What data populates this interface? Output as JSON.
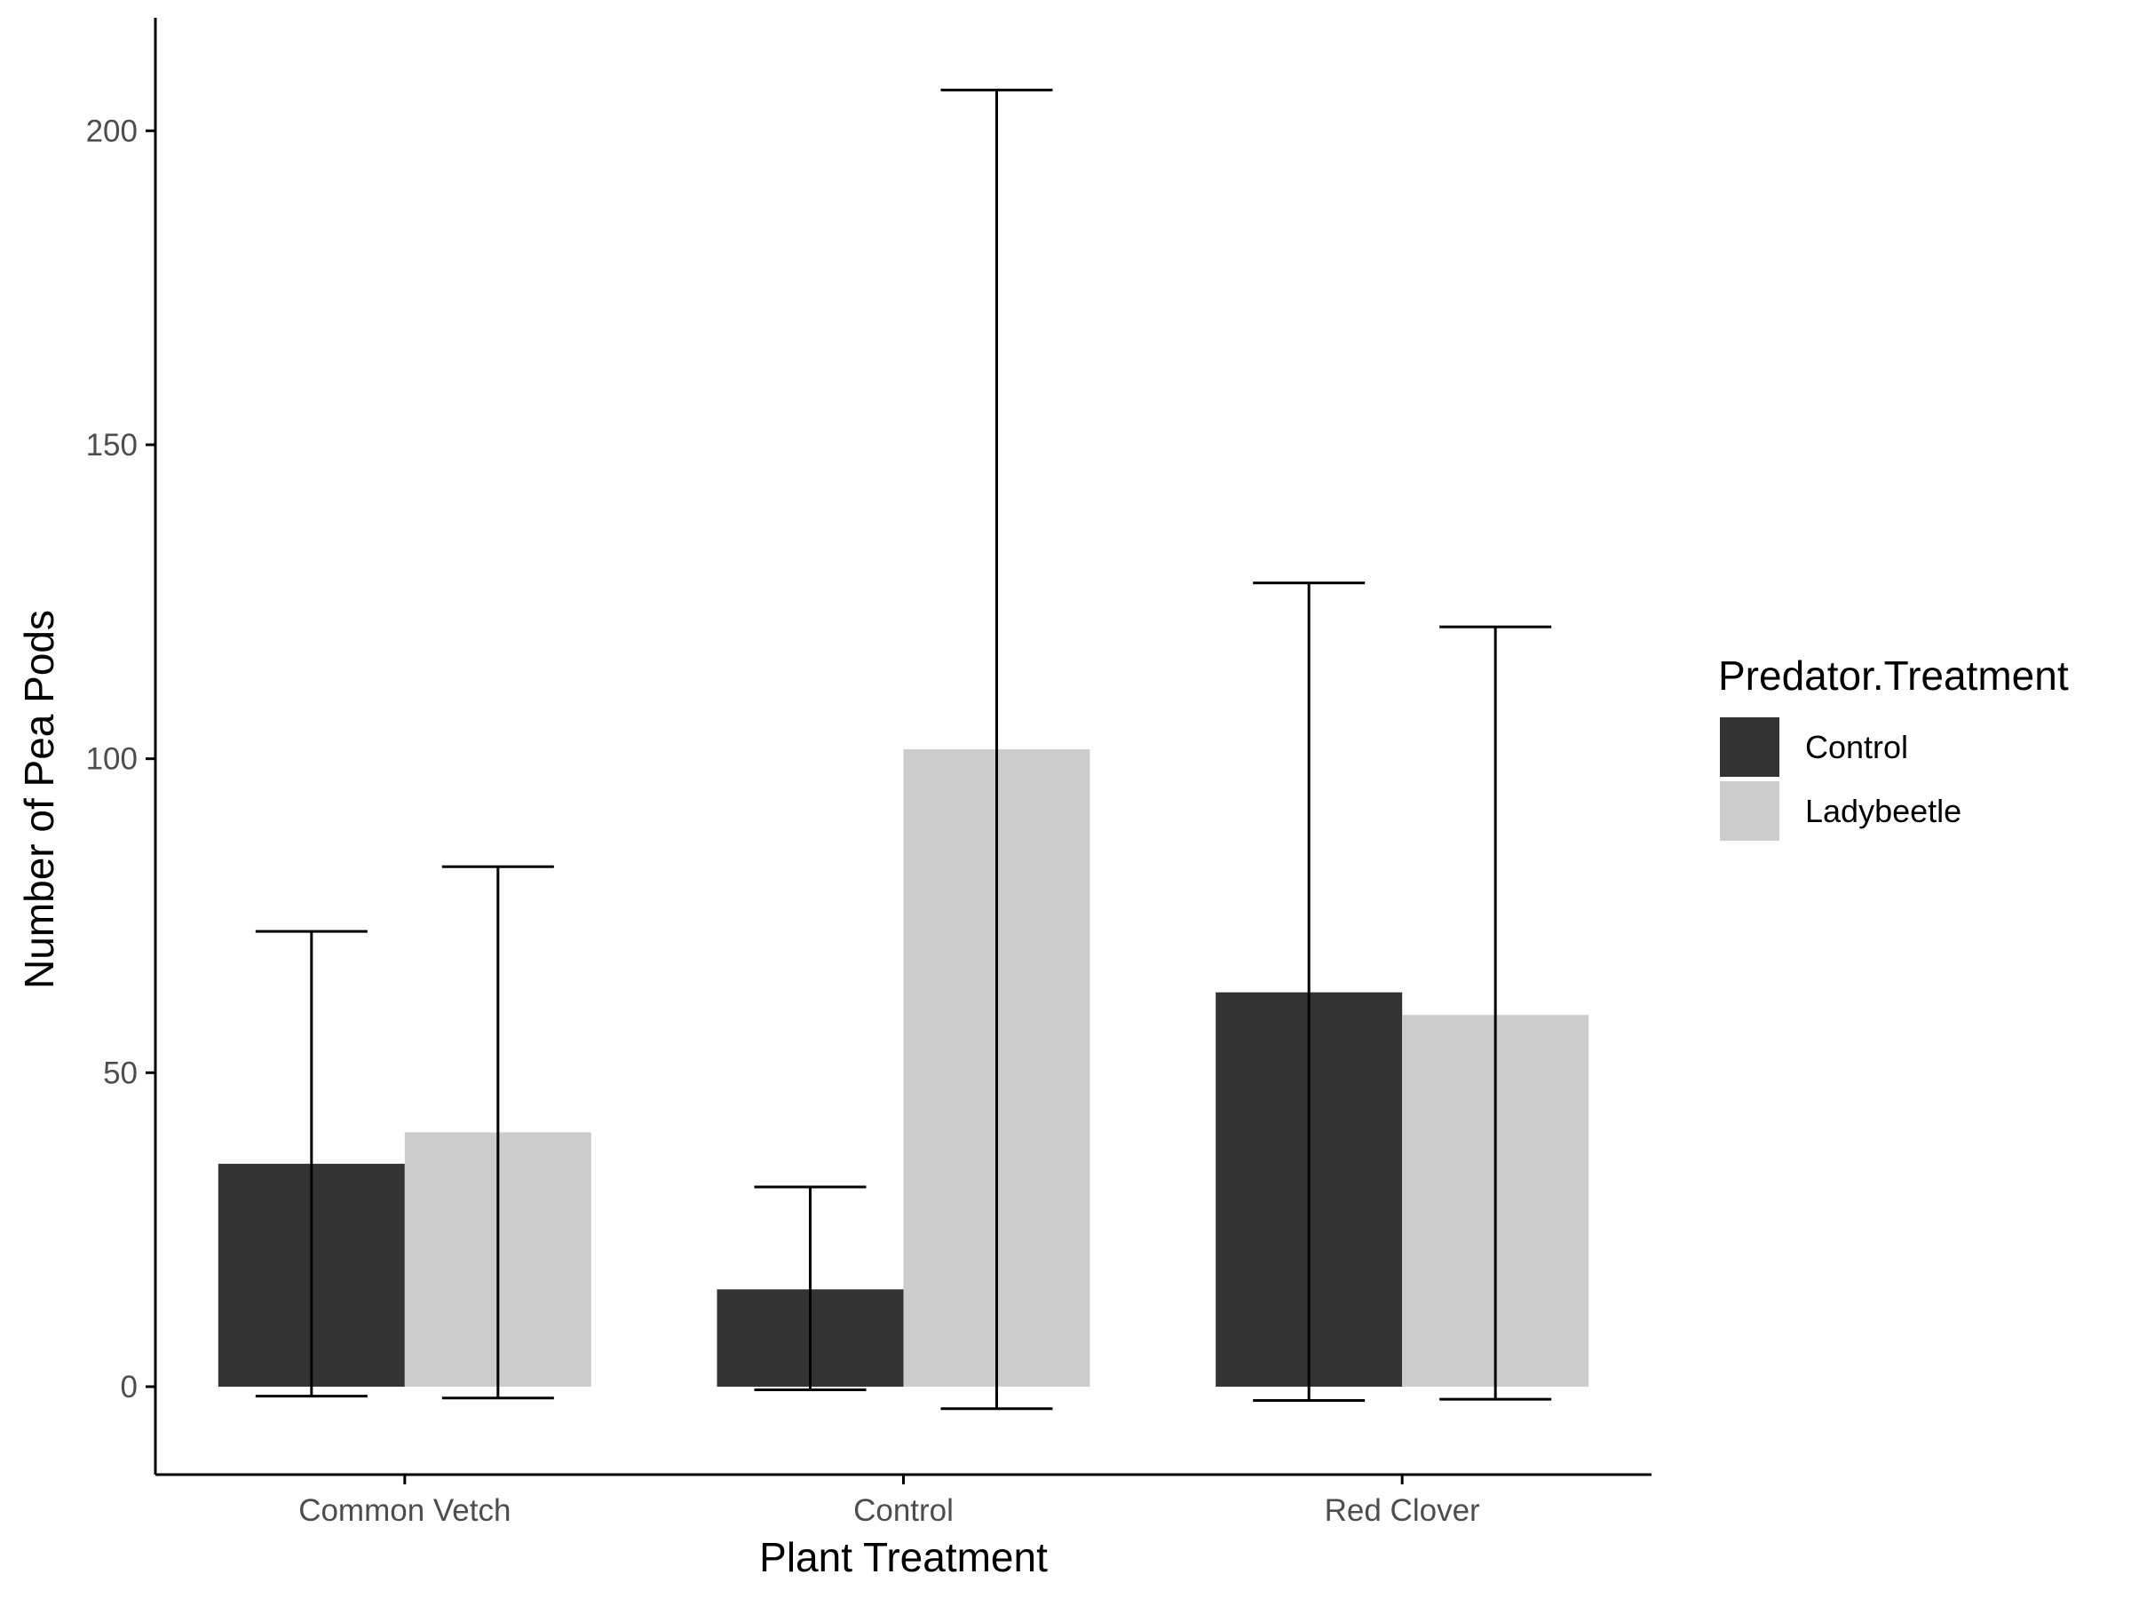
{
  "chart_data": {
    "type": "bar",
    "title": "",
    "xlabel": "Plant Treatment",
    "ylabel": "Number of Pea Pods",
    "categories": [
      "Common Vetch",
      "Control",
      "Red Clover"
    ],
    "ylim": [
      -14,
      218
    ],
    "yticks": [
      0,
      50,
      100,
      150,
      200
    ],
    "grid": false,
    "legend": {
      "title": "Predator.Treatment",
      "position": "right"
    },
    "series": [
      {
        "name": "Control",
        "color": "#333333",
        "values": [
          35.5,
          15.5,
          62.8
        ],
        "error_low": [
          -1.5,
          -0.5,
          -2.2
        ],
        "error_high": [
          72.5,
          31.8,
          128.0
        ]
      },
      {
        "name": "Ladybeetle",
        "color": "#cccccc",
        "values": [
          40.5,
          101.5,
          59.2
        ],
        "error_low": [
          -1.8,
          -3.5,
          -2.0
        ],
        "error_high": [
          82.8,
          206.5,
          121.0
        ]
      }
    ]
  }
}
